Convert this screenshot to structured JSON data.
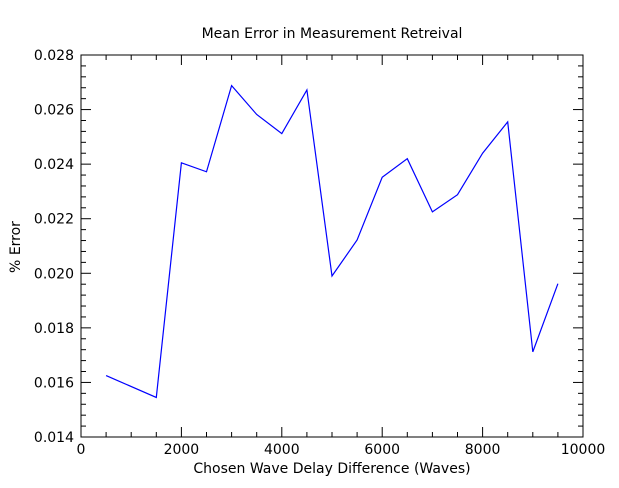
{
  "chart_data": {
    "type": "line",
    "title": "Mean Error in Measurement Retreival",
    "xlabel": "Chosen Wave Delay Difference (Waves)",
    "ylabel": "% Error",
    "xlim": [
      0,
      10000
    ],
    "ylim": [
      0.014,
      0.028
    ],
    "grid": false,
    "x_ticks": [
      0,
      2000,
      4000,
      6000,
      8000,
      10000
    ],
    "x_tick_labels": [
      "0",
      "2000",
      "4000",
      "6000",
      "8000",
      "10000"
    ],
    "x_minor_step": 500,
    "y_ticks": [
      0.014,
      0.016,
      0.018,
      0.02,
      0.022,
      0.024,
      0.026,
      0.028
    ],
    "y_tick_labels": [
      "0.014",
      "0.016",
      "0.018",
      "0.020",
      "0.022",
      "0.024",
      "0.026",
      "0.028"
    ],
    "y_minor_step": 0.0004,
    "series": [
      {
        "color": "#0000ff",
        "x": [
          500,
          1500,
          2000,
          2500,
          3000,
          3500,
          4000,
          4500,
          5000,
          5500,
          6000,
          6500,
          7000,
          7500,
          8000,
          8500,
          9000,
          9500
        ],
        "y": [
          0.01625,
          0.01545,
          0.02405,
          0.02372,
          0.02688,
          0.02582,
          0.02512,
          0.02672,
          0.0199,
          0.02122,
          0.02352,
          0.0242,
          0.02225,
          0.02288,
          0.0244,
          0.02555,
          0.01712,
          0.01962
        ]
      }
    ]
  }
}
